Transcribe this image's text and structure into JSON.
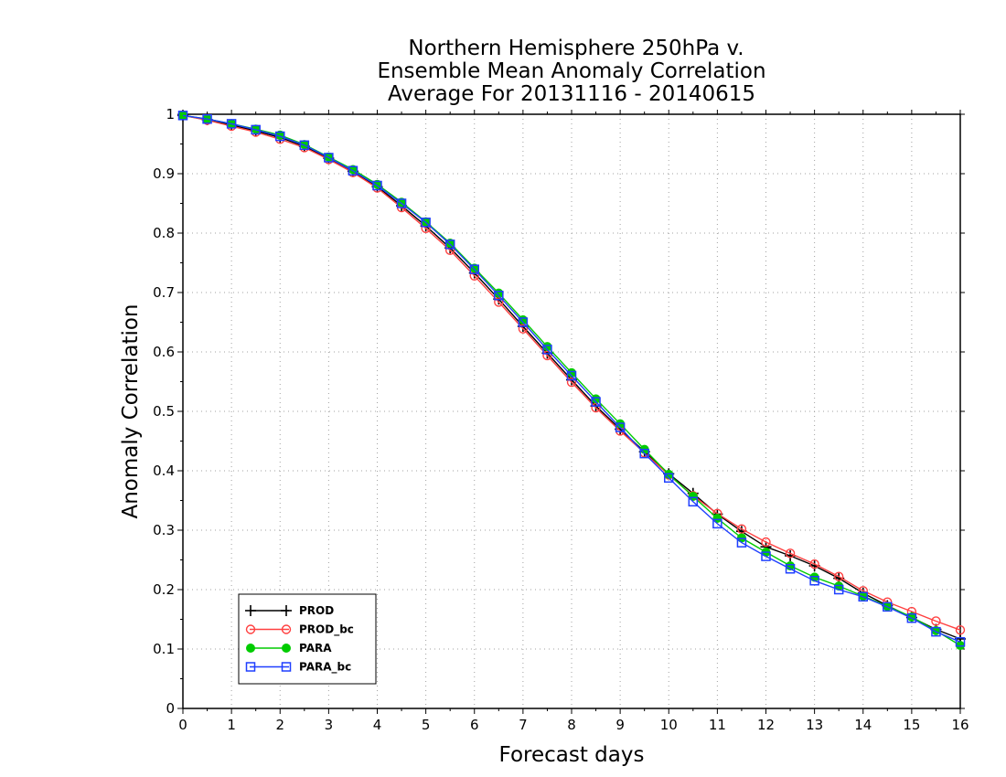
{
  "chart_data": {
    "type": "line",
    "title_lines": [
      "Northern Hemisphere 250hPa v.",
      "Ensemble Mean Anomaly Correlation",
      "Average For 20131116 - 20140615"
    ],
    "xlabel": "Forecast days",
    "ylabel": "Anomaly Correlation",
    "xlim": [
      0,
      16
    ],
    "ylim": [
      0,
      1
    ],
    "x_ticks": [
      "0",
      "1",
      "2",
      "3",
      "4",
      "5",
      "6",
      "7",
      "8",
      "9",
      "10",
      "11",
      "12",
      "13",
      "14",
      "15",
      "16"
    ],
    "y_ticks": [
      "0",
      "0.1",
      "0.2",
      "0.3",
      "0.4",
      "0.5",
      "0.6",
      "0.7",
      "0.8",
      "0.9",
      "1"
    ],
    "grid": true,
    "legend_position": "bottom-left",
    "x": [
      0,
      0.5,
      1,
      1.5,
      2,
      2.5,
      3,
      3.5,
      4,
      4.5,
      5,
      5.5,
      6,
      6.5,
      7,
      7.5,
      8,
      8.5,
      9,
      9.5,
      10,
      10.5,
      11,
      11.5,
      12,
      12.5,
      13,
      13.5,
      14,
      14.5,
      15,
      15.5,
      16
    ],
    "series": [
      {
        "name": "PROD",
        "color": "#000000",
        "marker": "plus",
        "values": [
          0.998,
          0.991,
          0.982,
          0.972,
          0.961,
          0.946,
          0.926,
          0.904,
          0.878,
          0.846,
          0.812,
          0.775,
          0.733,
          0.689,
          0.643,
          0.598,
          0.553,
          0.509,
          0.47,
          0.432,
          0.395,
          0.362,
          0.327,
          0.298,
          0.272,
          0.257,
          0.24,
          0.219,
          0.194,
          0.173,
          0.153,
          0.133,
          0.117
        ]
      },
      {
        "name": "PROD_bc",
        "color": "#ff4040",
        "marker": "circle-open",
        "values": [
          0.998,
          0.99,
          0.98,
          0.97,
          0.958,
          0.944,
          0.924,
          0.902,
          0.876,
          0.843,
          0.808,
          0.771,
          0.728,
          0.684,
          0.639,
          0.594,
          0.549,
          0.506,
          0.467,
          0.43,
          0.393,
          0.358,
          0.328,
          0.302,
          0.28,
          0.261,
          0.243,
          0.222,
          0.198,
          0.179,
          0.163,
          0.147,
          0.132
        ]
      },
      {
        "name": "PARA",
        "color": "#00cc00",
        "marker": "circle-filled",
        "values": [
          0.998,
          0.992,
          0.984,
          0.975,
          0.965,
          0.949,
          0.928,
          0.907,
          0.882,
          0.852,
          0.819,
          0.783,
          0.741,
          0.699,
          0.654,
          0.609,
          0.565,
          0.521,
          0.479,
          0.436,
          0.394,
          0.357,
          0.32,
          0.287,
          0.263,
          0.24,
          0.221,
          0.206,
          0.189,
          0.172,
          0.154,
          0.131,
          0.106
        ]
      },
      {
        "name": "PARA_bc",
        "color": "#1f3fff",
        "marker": "square-open",
        "values": [
          0.998,
          0.992,
          0.984,
          0.974,
          0.963,
          0.948,
          0.927,
          0.905,
          0.88,
          0.85,
          0.818,
          0.781,
          0.739,
          0.695,
          0.65,
          0.604,
          0.56,
          0.516,
          0.473,
          0.429,
          0.388,
          0.348,
          0.311,
          0.279,
          0.256,
          0.235,
          0.215,
          0.2,
          0.188,
          0.171,
          0.152,
          0.129,
          0.112
        ]
      }
    ]
  }
}
